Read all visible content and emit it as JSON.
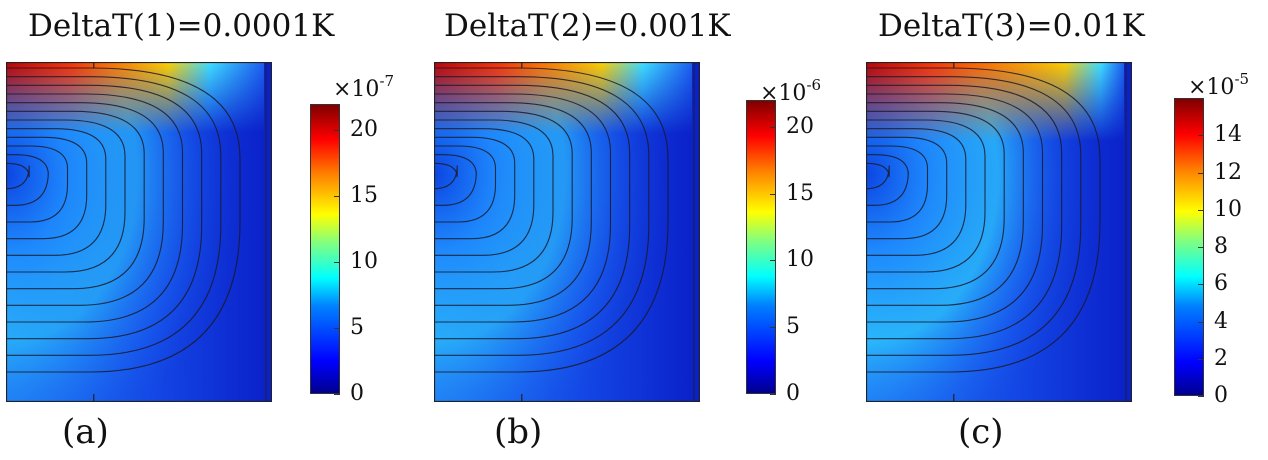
{
  "chart_data": [
    {
      "type": "heatmap",
      "title": "DeltaT(1)=0.0001K",
      "label": "(a)",
      "colorbar": {
        "multiplier_base": "×10",
        "multiplier_exp": "-7",
        "ticks": [
          "0",
          "5",
          "10",
          "15",
          "20"
        ],
        "tick_values": [
          0,
          5,
          10,
          15,
          20
        ],
        "range": [
          0,
          22
        ]
      },
      "field_max": 22,
      "hot_spread": 0.18
    },
    {
      "type": "heatmap",
      "title": "DeltaT(2)=0.001K",
      "label": "(b)",
      "colorbar": {
        "multiplier_base": "×10",
        "multiplier_exp": "-6",
        "ticks": [
          "0",
          "5",
          "10",
          "15",
          "20"
        ],
        "tick_values": [
          0,
          5,
          10,
          15,
          20
        ],
        "range": [
          0,
          22
        ]
      },
      "field_max": 22,
      "hot_spread": 0.2
    },
    {
      "type": "heatmap",
      "title": "DeltaT(3)=0.01K",
      "label": "(c)",
      "colorbar": {
        "multiplier_base": "×10",
        "multiplier_exp": "-5",
        "ticks": [
          "0",
          "2",
          "4",
          "6",
          "8",
          "10",
          "12",
          "14"
        ],
        "tick_values": [
          0,
          2,
          4,
          6,
          8,
          10,
          12,
          14
        ],
        "range": [
          0,
          16
        ]
      },
      "field_max": 16,
      "hot_spread": 0.32
    }
  ]
}
